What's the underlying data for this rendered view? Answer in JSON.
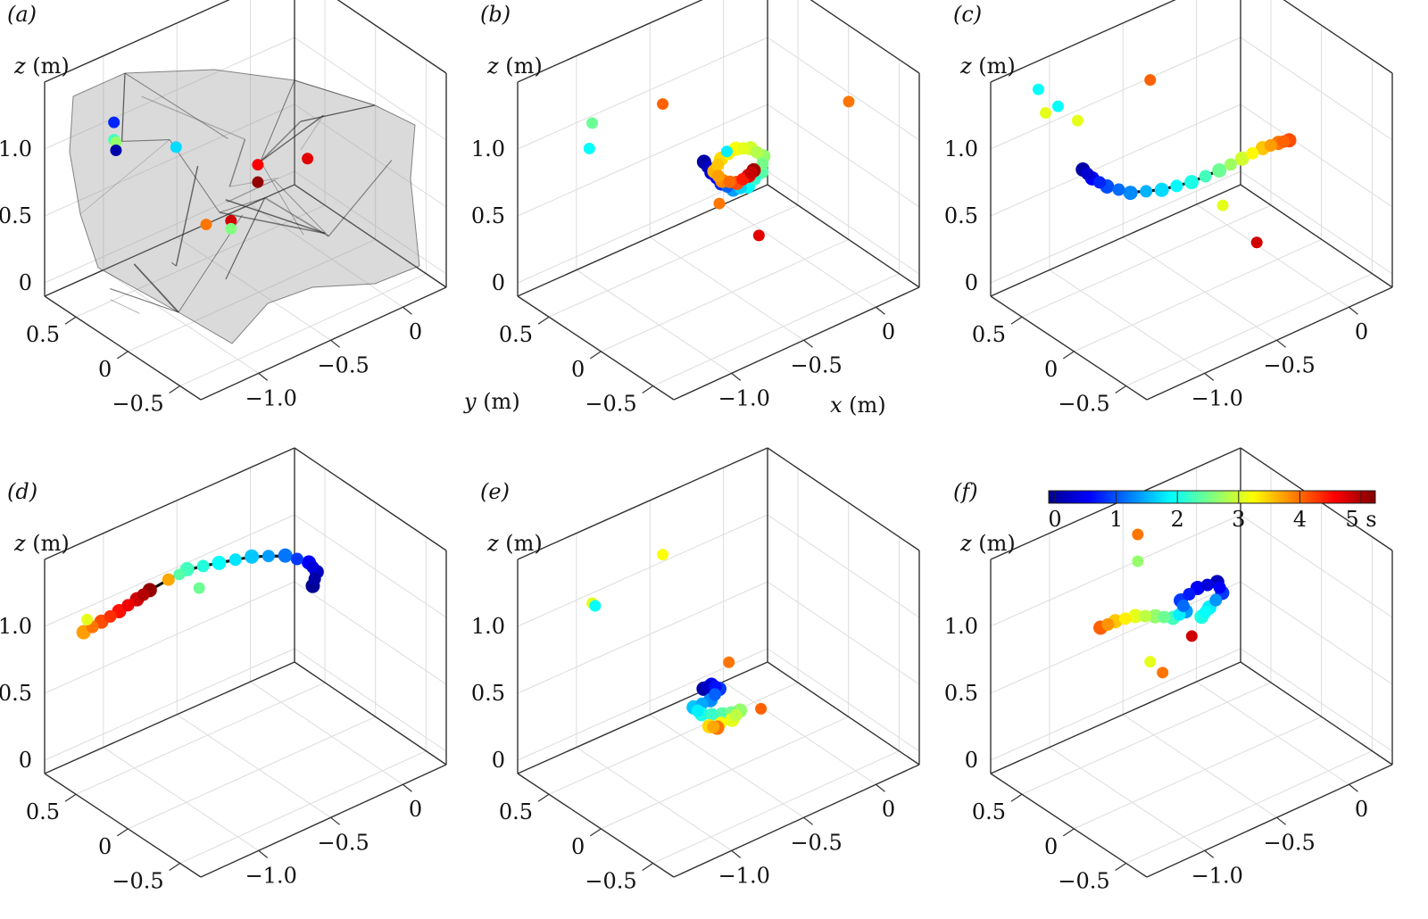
{
  "figure": {
    "colorbar": {
      "colormap": "jet",
      "range": [
        0,
        5
      ],
      "ticks": [
        "0",
        "1",
        "2",
        "3",
        "4",
        "5 s"
      ]
    }
  },
  "chart_data": [
    {
      "type": "scatter3d",
      "panel_label": "(a)",
      "xlabel": "x (m)",
      "ylabel": "y (m)",
      "zlabel": "z (m)",
      "x_ticks": [
        "−1.0",
        "−0.5",
        "0"
      ],
      "y_ticks": [
        "0.5",
        "0",
        "−0.5"
      ],
      "z_ticks": [
        "1.0",
        "0.5",
        "0"
      ],
      "show_xlabel": false,
      "show_ylabel": false,
      "show_zlabel": true,
      "xlim": [
        -1.4,
        0.3
      ],
      "ylim": [
        -0.7,
        0.8
      ],
      "zlim": [
        -0.1,
        1.5
      ],
      "hull": true,
      "points": [
        {
          "x": -1.1,
          "y": 0.55,
          "z": 1.18,
          "t": 0.8
        },
        {
          "x": -1.1,
          "y": 0.55,
          "z": 1.05,
          "t": 2.2
        },
        {
          "x": -1.05,
          "y": 0.6,
          "z": 0.98,
          "t": 2.6
        },
        {
          "x": -1.05,
          "y": 0.6,
          "z": 0.92,
          "t": 0.2
        },
        {
          "x": -0.85,
          "y": 0.3,
          "z": 1.0,
          "t": 1.7
        },
        {
          "x": -0.75,
          "y": 0.15,
          "z": 0.45,
          "t": 3.8
        },
        {
          "x": -0.3,
          "y": -0.2,
          "z": 0.9,
          "t": 4.5
        },
        {
          "x": -0.5,
          "y": 0.0,
          "z": 0.85,
          "t": 4.4
        },
        {
          "x": -0.5,
          "y": 0.0,
          "z": 0.72,
          "t": 4.9
        },
        {
          "x": -0.65,
          "y": 0.05,
          "z": 0.48,
          "t": 4.6
        },
        {
          "x": -0.65,
          "y": 0.05,
          "z": 0.42,
          "t": 2.5
        }
      ],
      "trajectory": []
    },
    {
      "type": "scatter3d",
      "panel_label": "(b)",
      "xlabel": "x (m)",
      "ylabel": "y (m)",
      "zlabel": "z (m)",
      "x_ticks": [
        "−1.0",
        "−0.5",
        "0"
      ],
      "y_ticks": [
        "0.5",
        "0",
        "−0.5"
      ],
      "z_ticks": [
        "1.0",
        "0.5",
        "0"
      ],
      "show_xlabel": true,
      "show_ylabel": true,
      "show_zlabel": true,
      "xlim": [
        -1.4,
        0.3
      ],
      "ylim": [
        -0.7,
        0.8
      ],
      "zlim": [
        -0.1,
        1.5
      ],
      "hull": false,
      "points": [
        {
          "x": -1.1,
          "y": 0.5,
          "z": 1.2,
          "t": 2.4
        },
        {
          "x": -1.12,
          "y": 0.5,
          "z": 1.02,
          "t": 1.9
        },
        {
          "x": -0.9,
          "y": 0.1,
          "z": 1.45,
          "t": 3.9
        },
        {
          "x": -0.6,
          "y": -0.1,
          "z": 1.05,
          "t": 1.8
        },
        {
          "x": 0.1,
          "y": -0.3,
          "z": 1.18,
          "t": 3.8
        },
        {
          "x": -0.45,
          "y": -0.2,
          "z": 0.4,
          "t": 4.5
        },
        {
          "x": -0.58,
          "y": 0.0,
          "z": 0.6,
          "t": 3.8
        }
      ],
      "trajectory": [
        {
          "x": -0.65,
          "y": 0.05,
          "z": 0.92,
          "t": 0.2
        },
        {
          "x": -0.62,
          "y": 0.02,
          "z": 0.84,
          "t": 0.4
        },
        {
          "x": -0.58,
          "y": -0.02,
          "z": 0.76,
          "t": 0.8
        },
        {
          "x": -0.52,
          "y": -0.05,
          "z": 0.7,
          "t": 1.4
        },
        {
          "x": -0.44,
          "y": -0.08,
          "z": 0.7,
          "t": 1.9
        },
        {
          "x": -0.36,
          "y": -0.1,
          "z": 0.78,
          "t": 2.3
        },
        {
          "x": -0.34,
          "y": -0.09,
          "z": 0.88,
          "t": 2.6
        },
        {
          "x": -0.4,
          "y": -0.05,
          "z": 0.95,
          "t": 2.9
        },
        {
          "x": -0.48,
          "y": -0.02,
          "z": 0.97,
          "t": 3.1
        },
        {
          "x": -0.56,
          "y": 0.01,
          "z": 0.92,
          "t": 3.3
        },
        {
          "x": -0.6,
          "y": 0.02,
          "z": 0.84,
          "t": 3.5
        },
        {
          "x": -0.56,
          "y": 0.0,
          "z": 0.76,
          "t": 3.7
        },
        {
          "x": -0.48,
          "y": -0.03,
          "z": 0.72,
          "t": 4.0
        },
        {
          "x": -0.42,
          "y": -0.06,
          "z": 0.76,
          "t": 4.5
        },
        {
          "x": -0.4,
          "y": -0.08,
          "z": 0.8,
          "t": 4.8
        }
      ]
    },
    {
      "type": "scatter3d",
      "panel_label": "(c)",
      "xlabel": "x (m)",
      "ylabel": "y (m)",
      "zlabel": "z (m)",
      "x_ticks": [
        "−1.0",
        "−0.5",
        "0"
      ],
      "y_ticks": [
        "0.5",
        "0",
        "−0.5"
      ],
      "z_ticks": [
        "1.0",
        "0.5",
        "0"
      ],
      "show_xlabel": false,
      "show_ylabel": false,
      "show_zlabel": true,
      "xlim": [
        -1.4,
        0.3
      ],
      "ylim": [
        -0.7,
        0.8
      ],
      "zlim": [
        -0.1,
        1.5
      ],
      "hull": false,
      "points": [
        {
          "x": -1.25,
          "y": 0.55,
          "z": 1.5,
          "t": 1.9
        },
        {
          "x": -1.15,
          "y": 0.5,
          "z": 1.35,
          "t": 1.9
        },
        {
          "x": -1.2,
          "y": 0.55,
          "z": 1.3,
          "t": 3.0
        },
        {
          "x": -1.05,
          "y": 0.45,
          "z": 1.22,
          "t": 3.0
        },
        {
          "x": -0.8,
          "y": 0.1,
          "z": 1.58,
          "t": 3.9
        },
        {
          "x": -0.55,
          "y": -0.25,
          "z": 0.7,
          "t": 3.0
        },
        {
          "x": -0.35,
          "y": -0.3,
          "z": 0.35,
          "t": 4.6
        }
      ],
      "trajectory": [
        {
          "x": -1.05,
          "y": 0.4,
          "z": 0.88,
          "t": 0.2
        },
        {
          "x": -1.0,
          "y": 0.38,
          "z": 0.8,
          "t": 0.6
        },
        {
          "x": -0.94,
          "y": 0.32,
          "z": 0.74,
          "t": 1.0
        },
        {
          "x": -0.85,
          "y": 0.22,
          "z": 0.7,
          "t": 1.3
        },
        {
          "x": -0.72,
          "y": 0.1,
          "z": 0.72,
          "t": 1.7
        },
        {
          "x": -0.6,
          "y": -0.02,
          "z": 0.78,
          "t": 2.0
        },
        {
          "x": -0.48,
          "y": -0.12,
          "z": 0.86,
          "t": 2.4
        },
        {
          "x": -0.38,
          "y": -0.2,
          "z": 0.94,
          "t": 2.9
        },
        {
          "x": -0.28,
          "y": -0.26,
          "z": 1.0,
          "t": 3.4
        },
        {
          "x": -0.2,
          "y": -0.3,
          "z": 1.02,
          "t": 3.8
        },
        {
          "x": -0.14,
          "y": -0.32,
          "z": 1.02,
          "t": 4.0
        }
      ]
    },
    {
      "type": "scatter3d",
      "panel_label": "(d)",
      "xlabel": "x (m)",
      "ylabel": "y (m)",
      "zlabel": "z (m)",
      "x_ticks": [
        "−1.0",
        "−0.5",
        "0"
      ],
      "y_ticks": [
        "0.5",
        "0",
        "−0.5"
      ],
      "z_ticks": [
        "1.0",
        "0.5",
        "0"
      ],
      "show_xlabel": false,
      "show_ylabel": false,
      "show_zlabel": true,
      "xlim": [
        -1.4,
        0.3
      ],
      "ylim": [
        -0.7,
        0.8
      ],
      "zlim": [
        -0.1,
        1.5
      ],
      "hull": false,
      "points": [
        {
          "x": -1.25,
          "y": 0.6,
          "z": 1.08,
          "t": 3.0
        },
        {
          "x": -0.9,
          "y": 0.2,
          "z": 1.45,
          "t": 2.3
        },
        {
          "x": -0.82,
          "y": 0.12,
          "z": 1.35,
          "t": 2.4
        }
      ],
      "trajectory": [
        {
          "x": -1.26,
          "y": 0.62,
          "z": 0.98,
          "t": 3.6
        },
        {
          "x": -1.18,
          "y": 0.56,
          "z": 1.05,
          "t": 4.0
        },
        {
          "x": -1.1,
          "y": 0.5,
          "z": 1.12,
          "t": 4.3
        },
        {
          "x": -1.02,
          "y": 0.44,
          "z": 1.2,
          "t": 4.6
        },
        {
          "x": -0.96,
          "y": 0.4,
          "z": 1.26,
          "t": 4.9
        },
        {
          "x": -0.86,
          "y": 0.18,
          "z": 1.48,
          "t": 2.2
        },
        {
          "x": -0.74,
          "y": 0.04,
          "z": 1.54,
          "t": 1.9
        },
        {
          "x": -0.6,
          "y": -0.08,
          "z": 1.58,
          "t": 1.6
        },
        {
          "x": -0.44,
          "y": -0.18,
          "z": 1.56,
          "t": 1.2
        },
        {
          "x": -0.32,
          "y": -0.24,
          "z": 1.48,
          "t": 0.6
        },
        {
          "x": -0.28,
          "y": -0.26,
          "z": 1.4,
          "t": 0.3
        },
        {
          "x": -0.3,
          "y": -0.25,
          "z": 1.3,
          "t": 0.1
        }
      ]
    },
    {
      "type": "scatter3d",
      "panel_label": "(e)",
      "xlabel": "x (m)",
      "ylabel": "y (m)",
      "zlabel": "z (m)",
      "x_ticks": [
        "−1.0",
        "−0.5",
        "0"
      ],
      "y_ticks": [
        "0.5",
        "0",
        "−0.5"
      ],
      "z_ticks": [
        "1.0",
        "0.5",
        "0"
      ],
      "show_xlabel": false,
      "show_ylabel": false,
      "show_zlabel": true,
      "xlim": [
        -1.4,
        0.3
      ],
      "ylim": [
        -0.7,
        0.8
      ],
      "zlim": [
        -0.1,
        1.5
      ],
      "hull": false,
      "points": [
        {
          "x": -1.1,
          "y": 0.5,
          "z": 1.18,
          "t": 3.0
        },
        {
          "x": -1.08,
          "y": 0.5,
          "z": 1.15,
          "t": 1.9
        },
        {
          "x": -0.9,
          "y": 0.1,
          "z": 1.65,
          "t": 3.1
        },
        {
          "x": -0.55,
          "y": -0.05,
          "z": 0.75,
          "t": 3.8
        },
        {
          "x": -0.4,
          "y": -0.15,
          "z": 0.38,
          "t": 3.9
        }
      ],
      "trajectory": [
        {
          "x": -0.66,
          "y": 0.04,
          "z": 0.56,
          "t": 0.2
        },
        {
          "x": -0.62,
          "y": 0.02,
          "z": 0.58,
          "t": 0.5
        },
        {
          "x": -0.58,
          "y": 0.0,
          "z": 0.54,
          "t": 0.9
        },
        {
          "x": -0.62,
          "y": 0.03,
          "z": 0.46,
          "t": 1.3
        },
        {
          "x": -0.7,
          "y": 0.08,
          "z": 0.42,
          "t": 1.6
        },
        {
          "x": -0.66,
          "y": 0.06,
          "z": 0.36,
          "t": 2.0
        },
        {
          "x": -0.56,
          "y": 0.0,
          "z": 0.34,
          "t": 2.3
        },
        {
          "x": -0.48,
          "y": -0.06,
          "z": 0.36,
          "t": 2.6
        },
        {
          "x": -0.52,
          "y": -0.04,
          "z": 0.3,
          "t": 3.0
        },
        {
          "x": -0.62,
          "y": 0.04,
          "z": 0.26,
          "t": 3.3
        },
        {
          "x": -0.58,
          "y": 0.02,
          "z": 0.24,
          "t": 3.8
        }
      ]
    },
    {
      "type": "scatter3d",
      "panel_label": "(f)",
      "xlabel": "x (m)",
      "ylabel": "y (m)",
      "zlabel": "z (m)",
      "x_ticks": [
        "−1.0",
        "−0.5",
        "0"
      ],
      "y_ticks": [
        "0.5",
        "0",
        "−0.5"
      ],
      "z_ticks": [
        "1.0",
        "0.5",
        "0"
      ],
      "show_xlabel": false,
      "show_ylabel": false,
      "show_zlabel": true,
      "xlim": [
        -1.4,
        0.3
      ],
      "ylim": [
        -0.7,
        0.8
      ],
      "zlim": [
        -0.1,
        1.5
      ],
      "hull": false,
      "points": [
        {
          "x": -0.85,
          "y": 0.15,
          "z": 1.75,
          "t": 3.8
        },
        {
          "x": -0.85,
          "y": 0.15,
          "z": 1.55,
          "t": 2.6
        },
        {
          "x": -0.8,
          "y": 0.1,
          "z": 0.8,
          "t": 3.0
        },
        {
          "x": -0.75,
          "y": 0.05,
          "z": 0.72,
          "t": 3.8
        },
        {
          "x": -0.62,
          "y": -0.05,
          "z": 0.98,
          "t": 4.6
        }
      ],
      "trajectory": [
        {
          "x": -1.0,
          "y": 0.3,
          "z": 1.05,
          "t": 3.9
        },
        {
          "x": -0.94,
          "y": 0.24,
          "z": 1.1,
          "t": 3.4
        },
        {
          "x": -0.86,
          "y": 0.16,
          "z": 1.14,
          "t": 3.0
        },
        {
          "x": -0.78,
          "y": 0.08,
          "z": 1.14,
          "t": 2.6
        },
        {
          "x": -0.7,
          "y": 0.02,
          "z": 1.12,
          "t": 2.2
        },
        {
          "x": -0.64,
          "y": -0.02,
          "z": 1.16,
          "t": 1.4
        },
        {
          "x": -0.66,
          "y": 0.0,
          "z": 1.24,
          "t": 0.9
        },
        {
          "x": -0.58,
          "y": -0.05,
          "z": 1.32,
          "t": 0.6
        },
        {
          "x": -0.48,
          "y": -0.1,
          "z": 1.34,
          "t": 0.3
        },
        {
          "x": -0.46,
          "y": -0.12,
          "z": 1.26,
          "t": 0.9
        },
        {
          "x": -0.52,
          "y": -0.08,
          "z": 1.16,
          "t": 1.8
        },
        {
          "x": -0.56,
          "y": -0.06,
          "z": 1.1,
          "t": 2.0
        }
      ]
    }
  ]
}
